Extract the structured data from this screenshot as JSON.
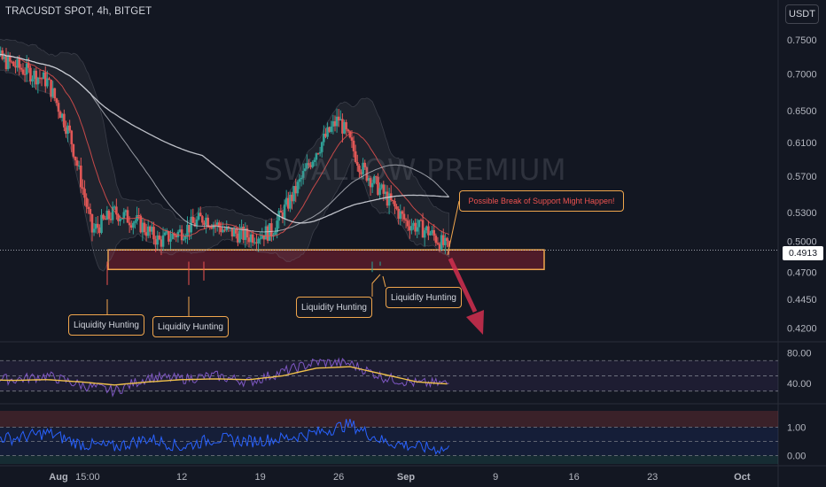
{
  "header": {
    "title": "TRACUSDT SPOT, 4h, BITGET",
    "currency_label": "USDT"
  },
  "watermark": "SWALLOW PREMIUM",
  "colors": {
    "background": "#131722",
    "up_candle": "#26a69a",
    "down_candle": "#ef5350",
    "zone_border": "#f0a64d",
    "zone_fill": "#5a1c2a",
    "rsi_line": "#7e57c2",
    "rsi_ma": "#f0c14b",
    "ma_white": "#d1d4dc",
    "arrow": "#d32f4f"
  },
  "annotations": [
    {
      "text": "Liquidity Hunting"
    },
    {
      "text": "Liquidity Hunting"
    },
    {
      "text": "Liquidity Hunting"
    },
    {
      "text": "Liquidity Hunting"
    },
    {
      "text": "Possible Break of Support Might Happen!"
    }
  ],
  "current_price": "0.4913",
  "chart_data": [
    {
      "type": "candlestick",
      "title": "TRACUSDT SPOT, 4h, BITGET",
      "x_ticks": [
        "Aug",
        "15:00",
        "12",
        "19",
        "26",
        "Sep",
        "9",
        "16",
        "23",
        "Oct"
      ],
      "y_ticks": [
        "0.7500",
        "0.7000",
        "0.6500",
        "0.6100",
        "0.5700",
        "0.5300",
        "0.5000",
        "0.4700",
        "0.4450",
        "0.4200"
      ],
      "ylim": [
        0.41,
        0.77
      ],
      "scale": "log",
      "support_zone": [
        0.4725,
        0.4915
      ],
      "series": [
        {
          "name": "",
          "x": [
            "Jul 25",
            "Jul 27",
            "Jul 29",
            "Jul 31",
            "Aug 2",
            "Aug 4",
            "Aug 6",
            "Aug 8",
            "Aug 10",
            "Aug 12",
            "Aug 14",
            "Aug 16",
            "Aug 18",
            "Aug 20",
            "Aug 22",
            "Aug 24",
            "Aug 26",
            "Aug 28",
            "Aug 30",
            "Sep 1",
            "Sep 3",
            "Sep 5"
          ],
          "values": [
            0.74,
            0.72,
            0.705,
            0.69,
            0.62,
            0.51,
            0.53,
            0.52,
            0.5,
            0.51,
            0.525,
            0.51,
            0.505,
            0.51,
            0.55,
            0.6,
            0.64,
            0.58,
            0.55,
            0.52,
            0.51,
            0.49
          ]
        }
      ]
    },
    {
      "type": "line",
      "title": "",
      "y_ticks": [
        "80.00",
        "40.00"
      ],
      "ylim": [
        18,
        90
      ],
      "series": [
        {
          "name": "",
          "x": [
            "Jul 25",
            "Jul 28",
            "Jul 31",
            "Aug 3",
            "Aug 6",
            "Aug 9",
            "Aug 12",
            "Aug 15",
            "Aug 18",
            "Aug 21",
            "Aug 24",
            "Aug 27",
            "Aug 30",
            "Sep 2",
            "Sep 5"
          ],
          "values": [
            48,
            45,
            50,
            38,
            30,
            48,
            46,
            50,
            42,
            55,
            68,
            66,
            48,
            40,
            40
          ]
        },
        {
          "name": "",
          "x": [
            "Jul 25",
            "Jul 28",
            "Jul 31",
            "Aug 3",
            "Aug 6",
            "Aug 9",
            "Aug 12",
            "Aug 15",
            "Aug 18",
            "Aug 21",
            "Aug 24",
            "Aug 27",
            "Aug 30",
            "Sep 2",
            "Sep 5"
          ],
          "values": [
            45,
            44,
            45,
            42,
            38,
            42,
            45,
            46,
            45,
            50,
            60,
            62,
            52,
            42,
            39
          ]
        }
      ]
    },
    {
      "type": "line",
      "title": "",
      "y_ticks": [
        "1.00",
        "0.00"
      ],
      "ylim": [
        -0.3,
        1.7
      ],
      "series": [
        {
          "name": "",
          "x": [
            "Jul 25",
            "Jul 28",
            "Jul 31",
            "Aug 3",
            "Aug 6",
            "Aug 9",
            "Aug 12",
            "Aug 15",
            "Aug 18",
            "Aug 21",
            "Aug 24",
            "Aug 27",
            "Aug 30",
            "Sep 2",
            "Sep 5"
          ],
          "values": [
            0.7,
            0.6,
            0.8,
            0.4,
            0.3,
            0.6,
            0.3,
            0.6,
            0.5,
            0.6,
            0.8,
            1.1,
            0.5,
            0.3,
            0.2
          ]
        }
      ]
    }
  ]
}
